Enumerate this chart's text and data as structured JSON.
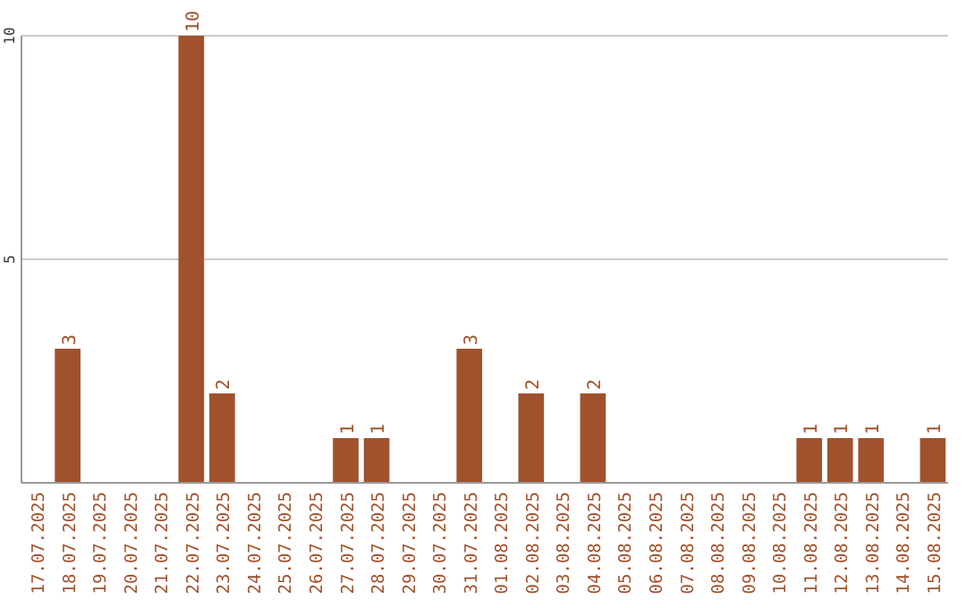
{
  "chart_data": {
    "type": "bar",
    "categories": [
      "17.07.2025",
      "18.07.2025",
      "19.07.2025",
      "20.07.2025",
      "21.07.2025",
      "22.07.2025",
      "23.07.2025",
      "24.07.2025",
      "25.07.2025",
      "26.07.2025",
      "27.07.2025",
      "28.07.2025",
      "29.07.2025",
      "30.07.2025",
      "31.07.2025",
      "01.08.2025",
      "02.08.2025",
      "03.08.2025",
      "04.08.2025",
      "05.08.2025",
      "06.08.2025",
      "07.08.2025",
      "08.08.2025",
      "09.08.2025",
      "10.08.2025",
      "11.08.2025",
      "12.08.2025",
      "13.08.2025",
      "14.08.2025",
      "15.08.2025"
    ],
    "values": [
      0,
      3,
      0,
      0,
      0,
      10,
      2,
      0,
      0,
      0,
      1,
      1,
      0,
      0,
      3,
      0,
      2,
      0,
      2,
      0,
      0,
      0,
      0,
      0,
      0,
      1,
      1,
      1,
      0,
      1
    ],
    "value_labels": [
      null,
      "3",
      null,
      null,
      null,
      "10",
      "2",
      null,
      null,
      null,
      "1",
      "1",
      null,
      null,
      "3",
      null,
      "2",
      null,
      "2",
      null,
      null,
      null,
      null,
      null,
      null,
      "1",
      "1",
      "1",
      null,
      "1"
    ],
    "color": "#a0522d",
    "ylim": [
      0,
      10
    ],
    "yticks": [
      {
        "value": 0,
        "label": null
      },
      5,
      10
    ],
    "grid": "y"
  }
}
